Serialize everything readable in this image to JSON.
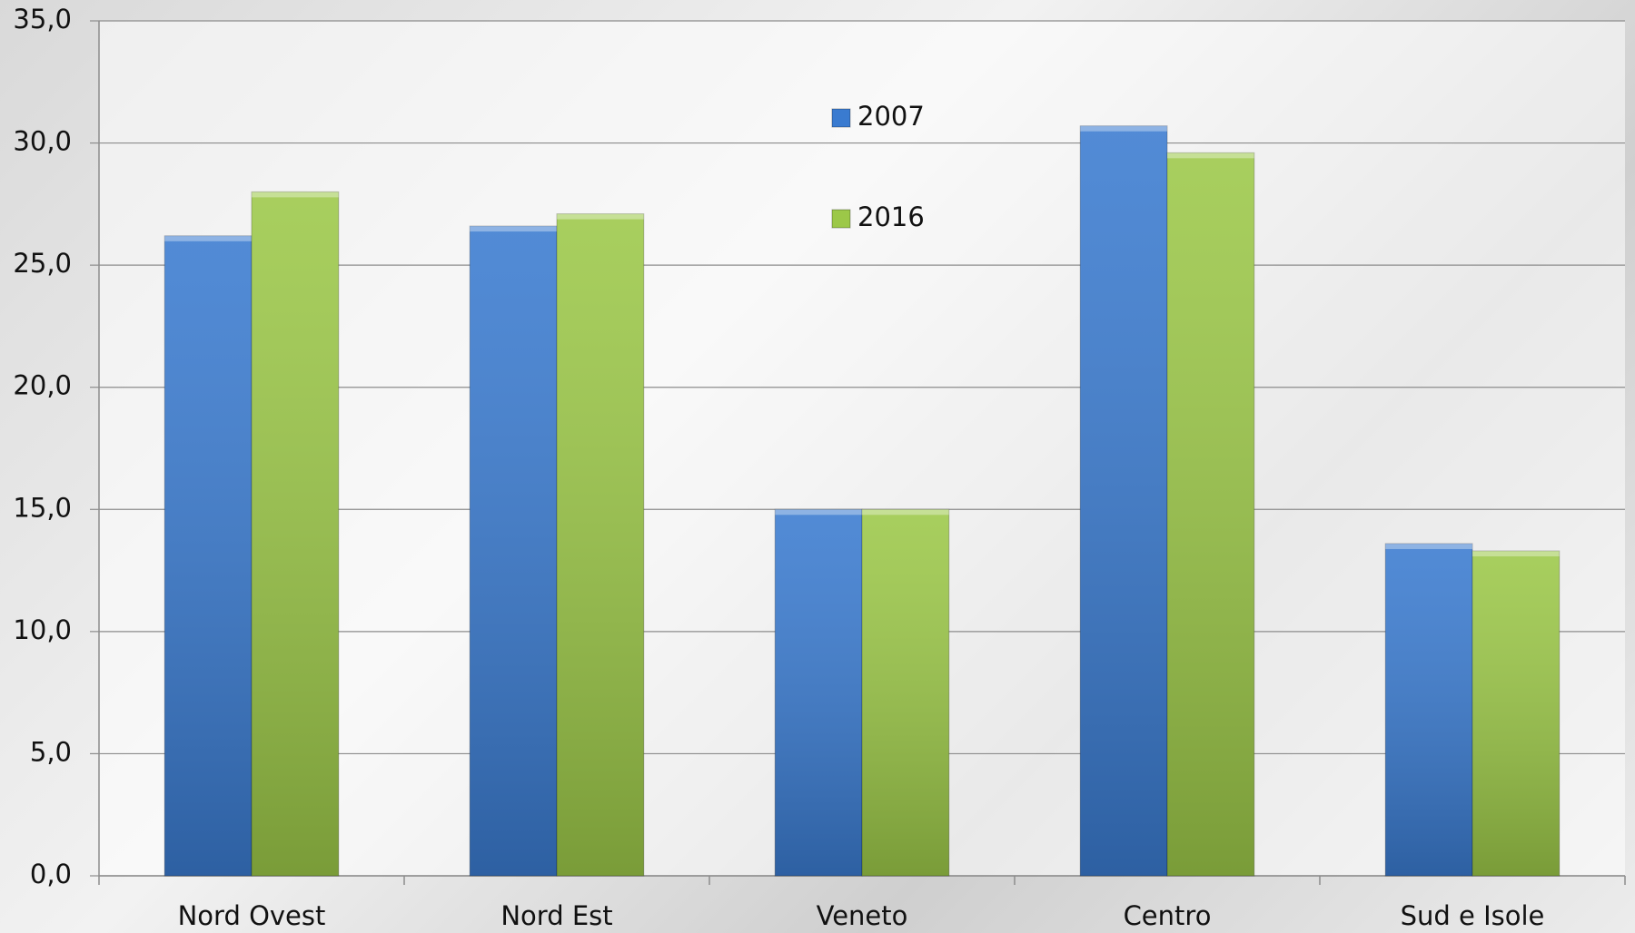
{
  "chart_data": {
    "type": "bar",
    "categories": [
      "Nord Ovest",
      "Nord Est",
      "Veneto",
      "Centro",
      "Sud e Isole"
    ],
    "series": [
      {
        "name": "2007",
        "color": "#3a7bd0",
        "values": [
          26.2,
          26.6,
          15.0,
          30.7,
          13.6
        ]
      },
      {
        "name": "2016",
        "color": "#9cc848",
        "values": [
          28.0,
          27.1,
          15.0,
          29.6,
          13.3
        ]
      }
    ],
    "ylim": [
      0,
      35
    ],
    "yticks": [
      {
        "value": 0,
        "label": "0,0"
      },
      {
        "value": 5,
        "label": "5,0"
      },
      {
        "value": 10,
        "label": "10,0"
      },
      {
        "value": 15,
        "label": "15,0"
      },
      {
        "value": 20,
        "label": "20,0"
      },
      {
        "value": 25,
        "label": "25,0"
      },
      {
        "value": 30,
        "label": "30,0"
      },
      {
        "value": 35,
        "label": "35,0"
      }
    ],
    "grid": true
  }
}
